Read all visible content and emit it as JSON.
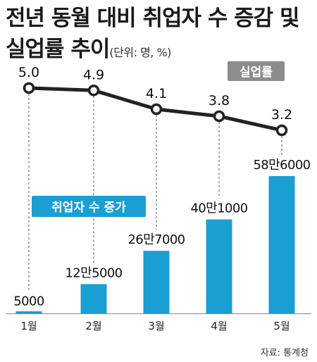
{
  "title": {
    "line1": "전년 동월 대비 취업자 수 증감 및",
    "line2": "실업률 추이",
    "unit_note": "(단위: 명, %)"
  },
  "source": "자료: 통계청",
  "colors": {
    "bar": "#1a9fd3",
    "line": "#222222",
    "legend_line_bg": "#8c8c8c",
    "legend_bar_bg": "#1a9fd3"
  },
  "chart_data": {
    "type": "bar+line",
    "categories": [
      "1월",
      "2월",
      "3월",
      "4월",
      "5월"
    ],
    "series": [
      {
        "name": "취업자 수 증가",
        "type": "bar",
        "values": [
          5000,
          125000,
          267000,
          401000,
          586000
        ],
        "labels": [
          "5000",
          "12만5000",
          "26만7000",
          "40만1000",
          "58만6000"
        ]
      },
      {
        "name": "실업률",
        "type": "line",
        "values": [
          5.0,
          4.9,
          4.1,
          3.8,
          3.2
        ],
        "labels": [
          "5.0",
          "4.9",
          "4.1",
          "3.8",
          "3.2"
        ]
      }
    ],
    "legend": [
      "실업률",
      "취업자 수 증가"
    ],
    "grid": false,
    "dashed_guides": true
  }
}
